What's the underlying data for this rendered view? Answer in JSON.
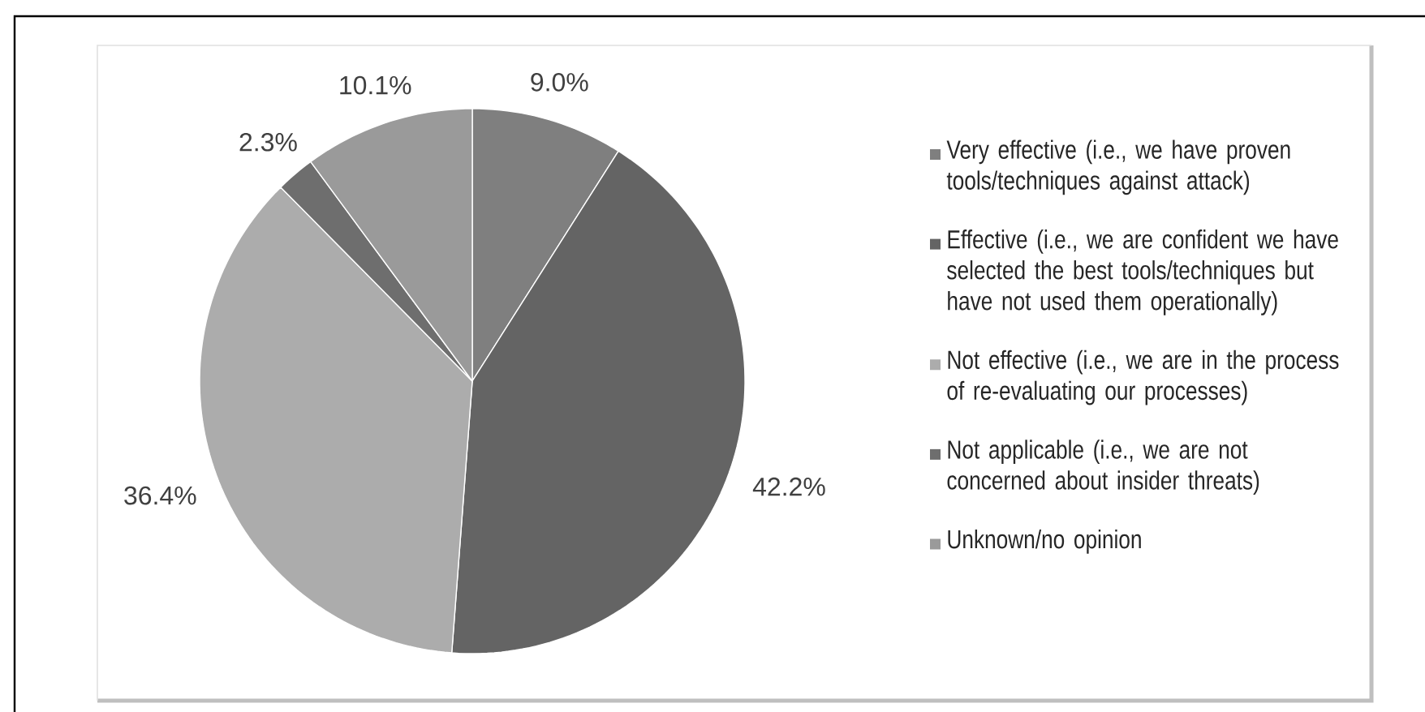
{
  "chart_data": {
    "type": "pie",
    "categories": [
      "Very effective (i.e., we have proven tools/techniques against attack)",
      "Effective (i.e., we are confident we have selected the best tools/techniques but have not used them operationally)",
      "Not effective (i.e., we are in the process of re-evaluating our processes)",
      "Not applicable (i.e., we are not concerned about insider threats)",
      "Unknown/no opinion"
    ],
    "values": [
      9.0,
      42.2,
      36.4,
      2.3,
      10.1
    ],
    "colors": [
      "#7f7f7f",
      "#646464",
      "#acacac",
      "#6e6e6e",
      "#9a9a9a"
    ],
    "value_labels": [
      "9.0%",
      "42.2%",
      "36.4%",
      "2.3%",
      "10.1%"
    ],
    "legend": "right"
  }
}
